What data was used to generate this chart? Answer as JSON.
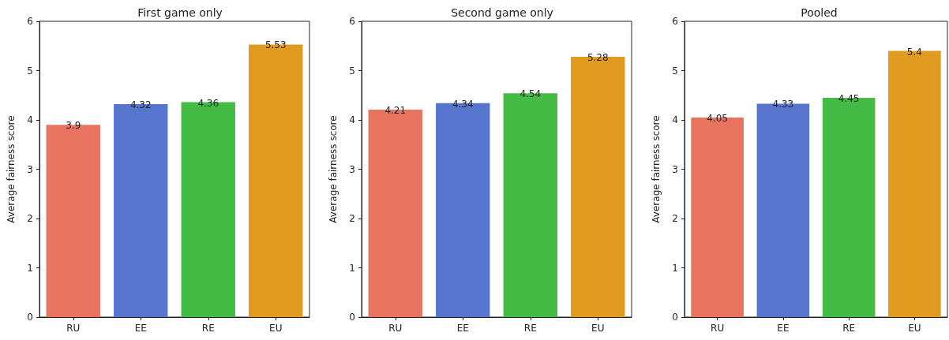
{
  "chart_data": [
    {
      "type": "bar",
      "title": "First game only",
      "ylabel": "Average fairness score",
      "categories": [
        "RU",
        "EE",
        "RE",
        "EU"
      ],
      "values": [
        3.9,
        4.32,
        4.36,
        5.53
      ],
      "colors": [
        "#e8735f",
        "#5675cf",
        "#44bb44",
        "#e09b20"
      ],
      "ylim": [
        0,
        6
      ],
      "yticks": [
        0,
        1,
        2,
        3,
        4,
        5,
        6
      ],
      "data_labels": true
    },
    {
      "type": "bar",
      "title": "Second game only",
      "ylabel": "Average fairness score",
      "categories": [
        "RU",
        "EE",
        "RE",
        "EU"
      ],
      "values": [
        4.21,
        4.34,
        4.54,
        5.28
      ],
      "colors": [
        "#e8735f",
        "#5675cf",
        "#44bb44",
        "#e09b20"
      ],
      "ylim": [
        0,
        6
      ],
      "yticks": [
        0,
        1,
        2,
        3,
        4,
        5,
        6
      ],
      "data_labels": true
    },
    {
      "type": "bar",
      "title": "Pooled",
      "ylabel": "Average fairness score",
      "categories": [
        "RU",
        "EE",
        "RE",
        "EU"
      ],
      "values": [
        4.05,
        4.33,
        4.45,
        5.4
      ],
      "colors": [
        "#e8735f",
        "#5675cf",
        "#44bb44",
        "#e09b20"
      ],
      "ylim": [
        0,
        6
      ],
      "yticks": [
        0,
        1,
        2,
        3,
        4,
        5,
        6
      ],
      "data_labels": true
    }
  ]
}
